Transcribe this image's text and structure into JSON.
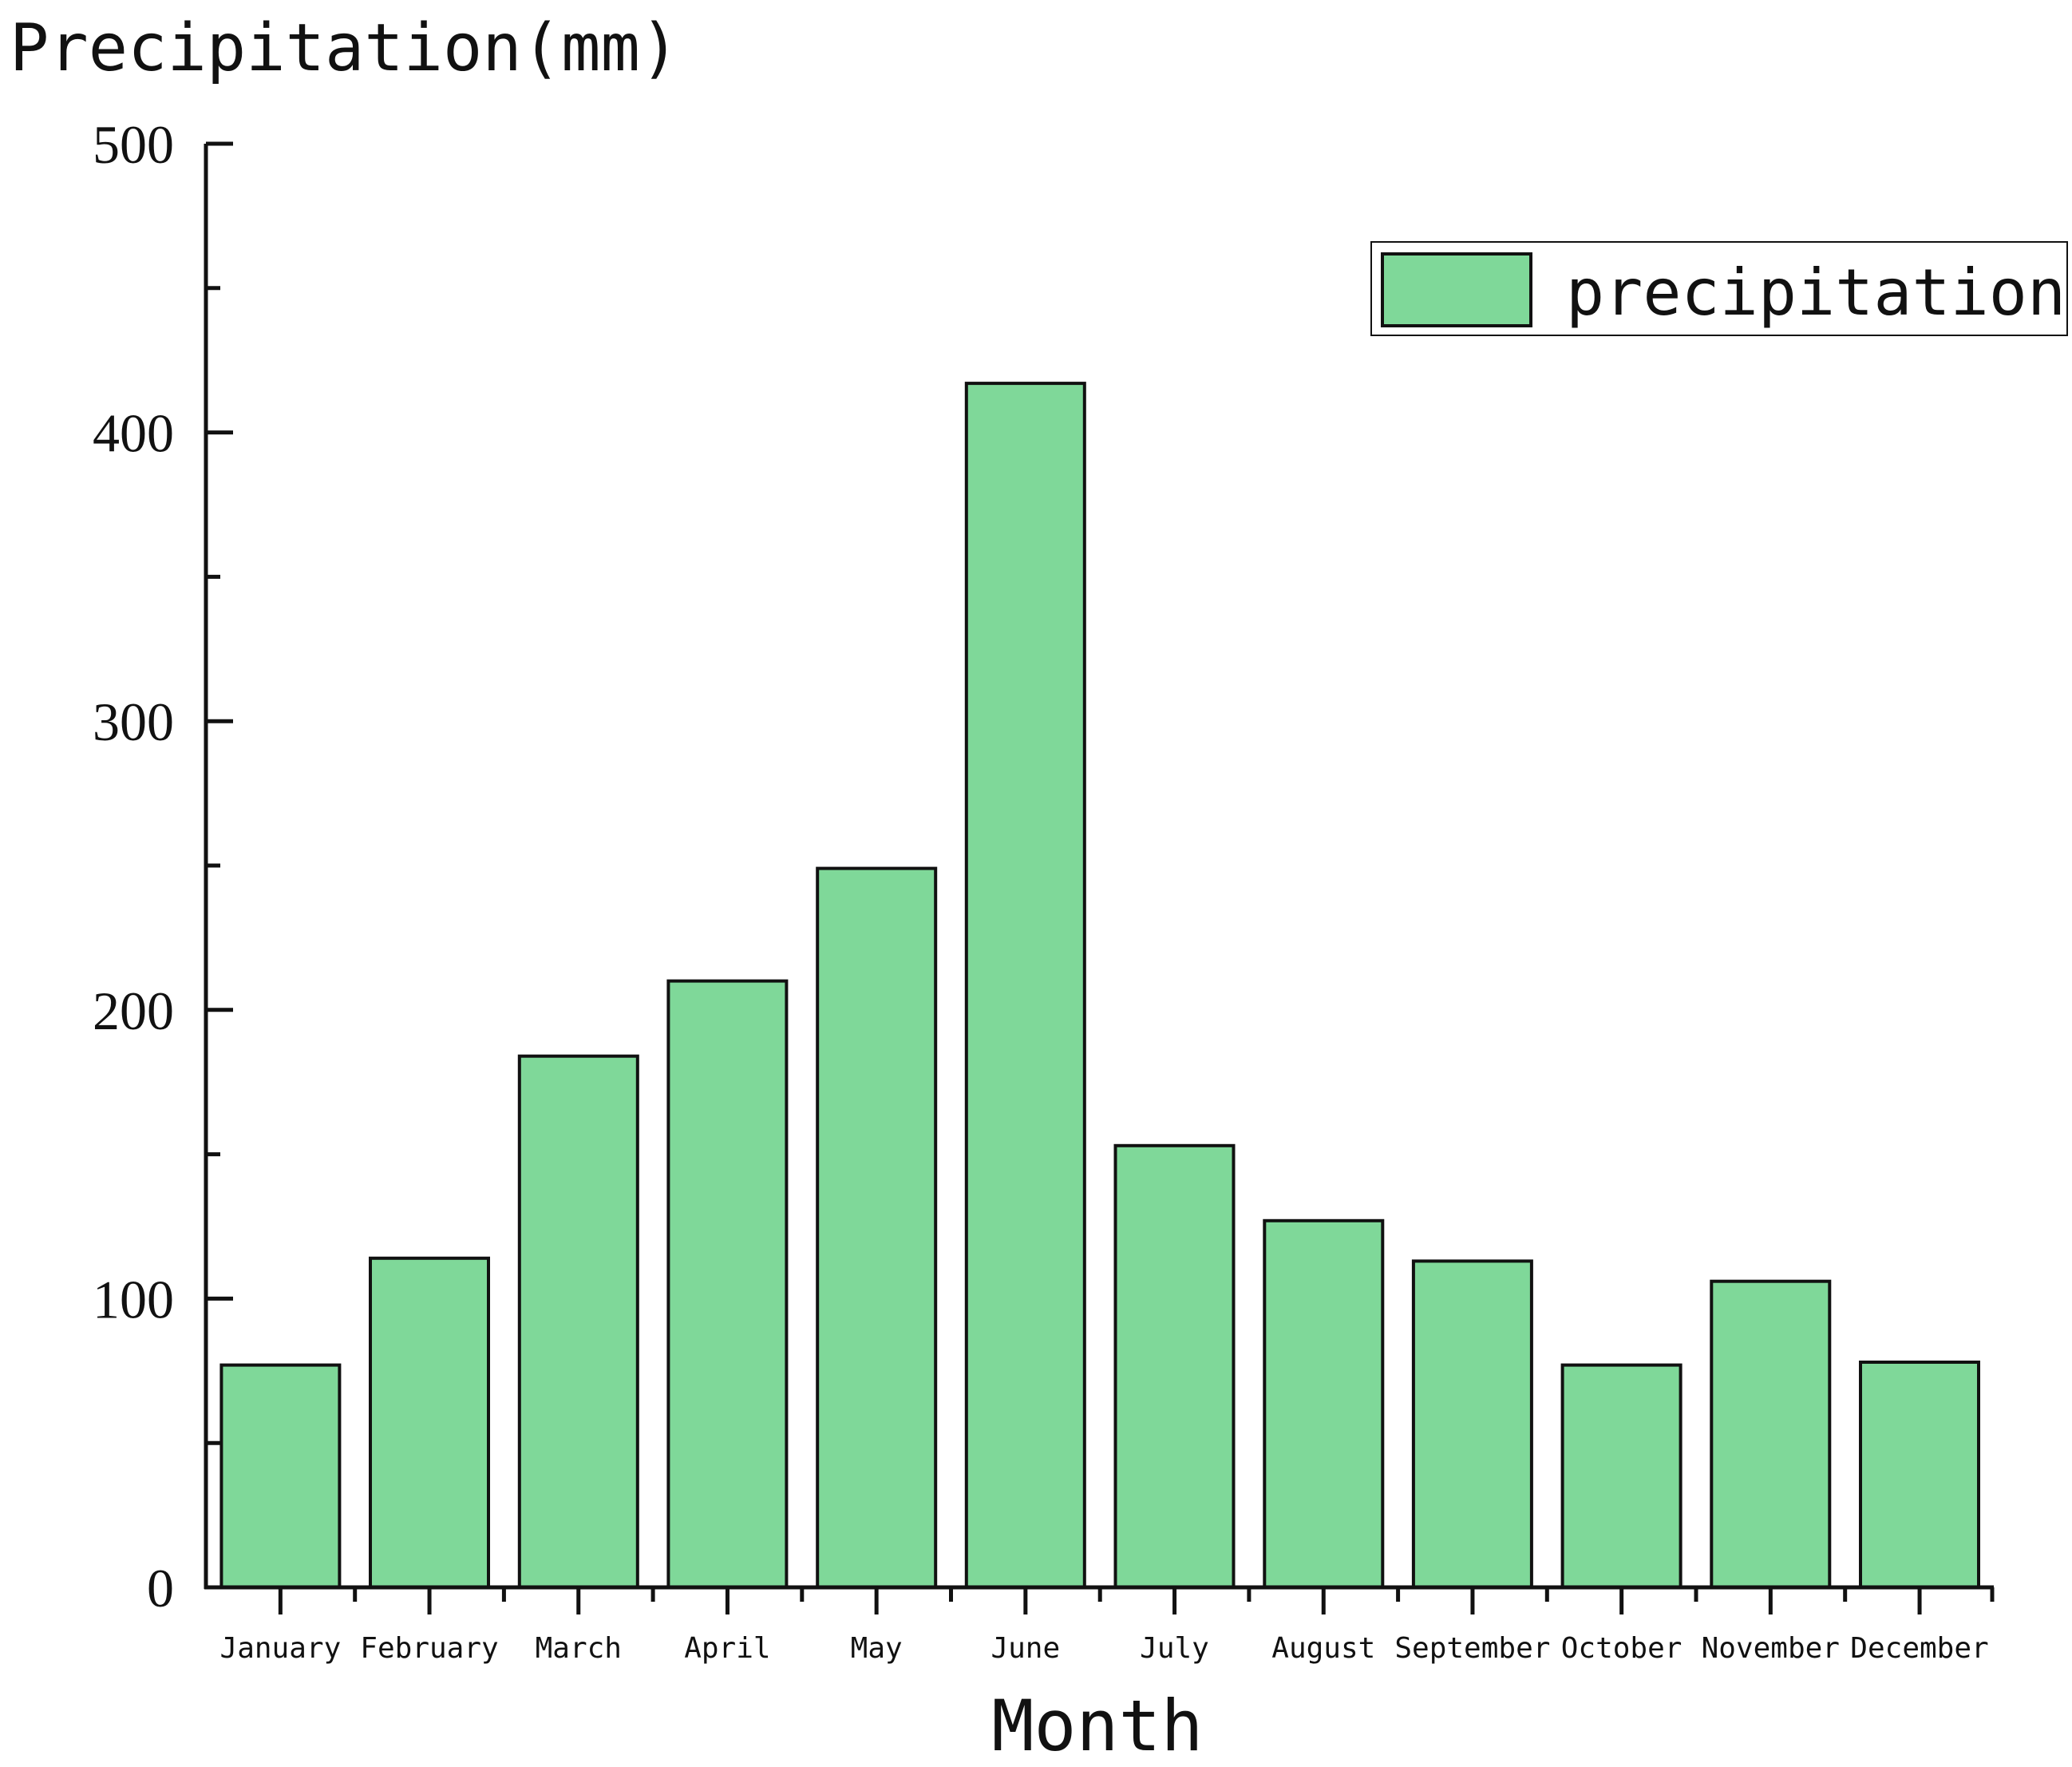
{
  "chart_data": {
    "type": "bar",
    "ylabel": "Precipitation(mm)",
    "xlabel": "Month",
    "ylim": [
      0,
      500
    ],
    "yticks": [
      "0",
      "100",
      "200",
      "300",
      "400",
      "500"
    ],
    "ytick_values": [
      0,
      100,
      200,
      300,
      400,
      500
    ],
    "y_minor_step": 50,
    "categories": [
      "January",
      "February",
      "March",
      "April",
      "May",
      "June",
      "July",
      "August",
      "September",
      "October",
      "November",
      "December"
    ],
    "series": [
      {
        "name": "precipitation",
        "values": [
          77,
          114,
          184,
          210,
          249,
          417,
          153,
          127,
          113,
          77,
          106,
          78
        ]
      }
    ],
    "legend": {
      "position": "top-right",
      "label": "precipitation"
    },
    "grid": false,
    "colors": {
      "bar_fill": "#7fd899",
      "bar_stroke": "#111111",
      "axis": "#111111"
    }
  }
}
